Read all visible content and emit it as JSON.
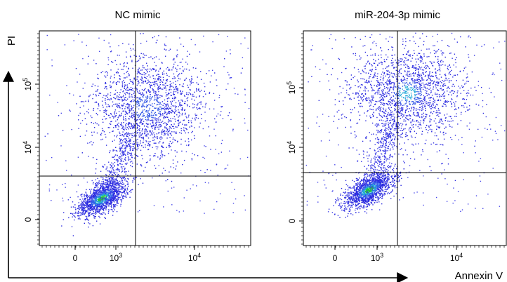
{
  "figure": {
    "ylabel": "PI",
    "xlabel": "Annexin V"
  },
  "chart_data": [
    {
      "type": "scatter",
      "title": "NC mimic",
      "x_scale": "biexponential",
      "y_scale": "biexponential",
      "x_ticks": [
        "0",
        "10^3",
        "10^4"
      ],
      "y_ticks": [
        "0",
        "10^4",
        "10^5"
      ],
      "quadrant_gate": {
        "x": 1700,
        "y": 5500
      },
      "grid": false,
      "population_summary": {
        "live_cluster_center": {
          "x": 600,
          "y": 2900
        },
        "apoptotic_cluster_center": {
          "x": 3000,
          "y": 45000
        }
      }
    },
    {
      "type": "scatter",
      "title": "miR-204-3p mimic",
      "x_scale": "biexponential",
      "y_scale": "biexponential",
      "x_ticks": [
        "0",
        "10^3",
        "10^4"
      ],
      "y_ticks": [
        "0",
        "10^4",
        "10^5"
      ],
      "quadrant_gate": {
        "x": 1700,
        "y": 6500
      },
      "grid": false,
      "population_summary": {
        "live_cluster_center": {
          "x": 700,
          "y": 3200
        },
        "apoptotic_cluster_center": {
          "x": 2500,
          "y": 70000
        }
      }
    }
  ]
}
